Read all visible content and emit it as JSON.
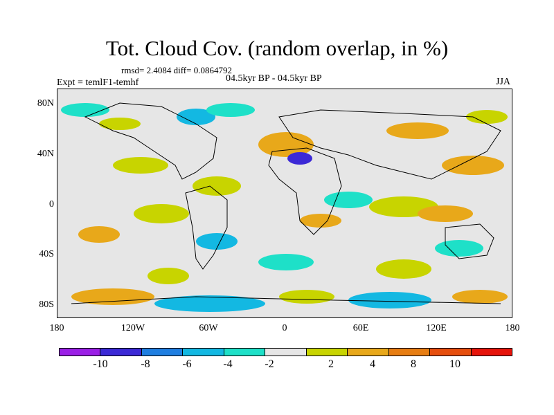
{
  "header": {
    "title": "Tot. Cloud Cov. (random overlap, in %)",
    "stats": "rmsd= 2.4084 diff= 0.0864792",
    "experiment": "Expt = temlF1-temhf",
    "period": "04.5kyr BP - 04.5kyr BP",
    "season": "JJA"
  },
  "map": {
    "lat_labels": [
      "80N",
      "40N",
      "0",
      "40S",
      "80S"
    ],
    "lon_labels": [
      "180",
      "120W",
      "60W",
      "0",
      "60E",
      "120E",
      "180"
    ],
    "background_color": "#e6e6e6"
  },
  "colorbar": {
    "colors": [
      "#9b1fe6",
      "#3c29d6",
      "#1f7ee0",
      "#13b8e2",
      "#1ee0c8",
      "#e6e6e6",
      "#c8d400",
      "#e8a81a",
      "#e77d12",
      "#e64e0d",
      "#e6140b"
    ],
    "labels": [
      "-10",
      "-8",
      "-6",
      "-4",
      "-2",
      "2",
      "4",
      "8",
      "10"
    ]
  }
}
